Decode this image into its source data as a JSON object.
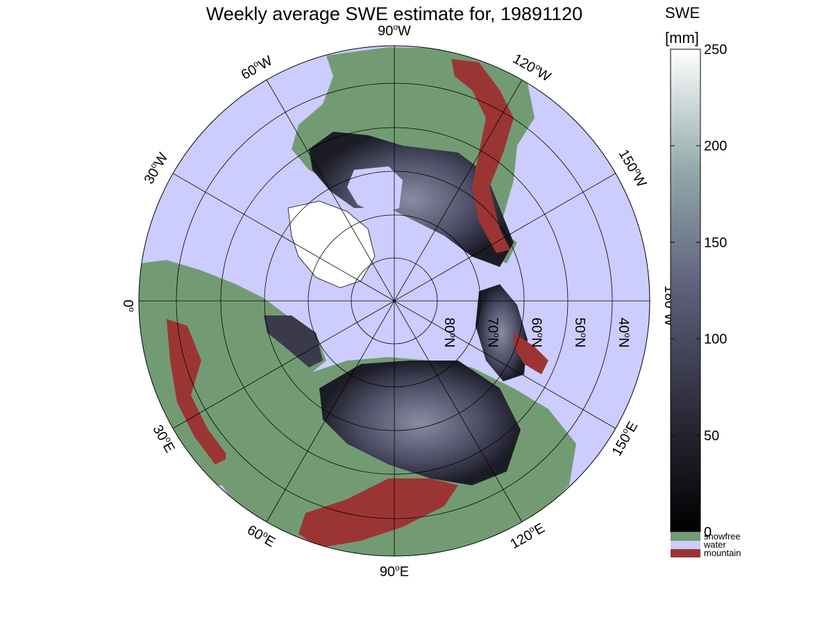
{
  "title": "Weekly average SWE estimate for, 19891120",
  "colorbar": {
    "label_line1": "SWE",
    "label_line2": "[mm]",
    "ticks": [
      "0",
      "50",
      "100",
      "150",
      "200",
      "250"
    ],
    "tick_values": [
      0,
      50,
      100,
      150,
      200,
      250
    ],
    "range": [
      0,
      250
    ],
    "colors": {
      "low": "#000000",
      "mid": "#5d5e7a",
      "high": "#ffffff"
    }
  },
  "legend": {
    "items": [
      {
        "label": "snowfree",
        "color": "#739b73"
      },
      {
        "label": "water",
        "color": "#ccccff"
      },
      {
        "label": "mountain",
        "color": "#9b3533"
      }
    ]
  },
  "map": {
    "projection": "polar",
    "colors": {
      "water": "#ccccff",
      "land": "#739b73",
      "mountain": "#9b3533",
      "snow": "#4a4b60"
    },
    "longitude_labels": [
      {
        "deg": "90",
        "sup": "o",
        "dir": "W",
        "lon": -90
      },
      {
        "deg": "120",
        "sup": "o",
        "dir": "W",
        "lon": -120
      },
      {
        "deg": "150",
        "sup": "o",
        "dir": "W",
        "lon": -150
      },
      {
        "deg": "180",
        "sup": "o",
        "dir": "W",
        "lon": 180
      },
      {
        "deg": "150",
        "sup": "o",
        "dir": "E",
        "lon": 150
      },
      {
        "deg": "120",
        "sup": "o",
        "dir": "E",
        "lon": 120
      },
      {
        "deg": "90",
        "sup": "o",
        "dir": "E",
        "lon": 90
      },
      {
        "deg": "60",
        "sup": "o",
        "dir": "E",
        "lon": 60
      },
      {
        "deg": "30",
        "sup": "o",
        "dir": "E",
        "lon": 30
      },
      {
        "deg": "0",
        "sup": "o",
        "dir": "",
        "lon": 0
      },
      {
        "deg": "30",
        "sup": "o",
        "dir": "W",
        "lon": -30
      },
      {
        "deg": "60",
        "sup": "o",
        "dir": "W",
        "lon": -60
      }
    ],
    "latitude_labels": [
      {
        "deg": "80",
        "sup": "o",
        "dir": "N",
        "lat": 80
      },
      {
        "deg": "70",
        "sup": "o",
        "dir": "N",
        "lat": 70
      },
      {
        "deg": "60",
        "sup": "o",
        "dir": "N",
        "lat": 60
      },
      {
        "deg": "50",
        "sup": "o",
        "dir": "N",
        "lat": 50
      },
      {
        "deg": "40",
        "sup": "o",
        "dir": "N",
        "lat": 40
      }
    ]
  }
}
